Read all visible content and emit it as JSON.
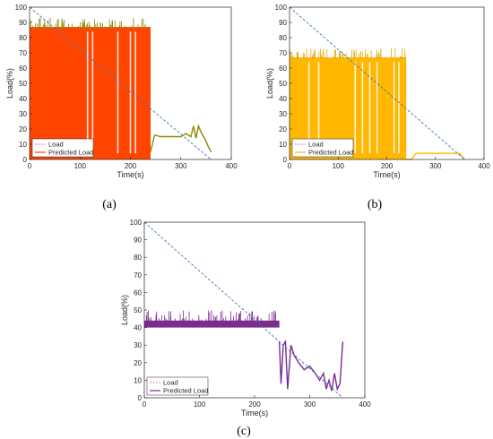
{
  "figure": {
    "colors": {
      "load": "#4472c4",
      "axis": "#262626",
      "legend_load_line": "#e0709a"
    },
    "panels": [
      {
        "id": "a",
        "caption": "(a)",
        "predicted_color": "#ff4500",
        "predicted_edge_color": "#8b8b00",
        "legend": [
          "Load",
          "Predicted Load"
        ],
        "legend_placement": "bottom-left",
        "chart_data": {
          "type": "line",
          "title": "",
          "xlabel": "Time(s)",
          "ylabel": "Load(%)",
          "xlim": [
            0,
            400
          ],
          "ylim": [
            0,
            100
          ],
          "xticks": [
            0,
            100,
            200,
            300,
            400
          ],
          "yticks": [
            0,
            10,
            20,
            30,
            40,
            50,
            60,
            70,
            80,
            90,
            100
          ],
          "series": [
            {
              "name": "Load",
              "style": "dashed",
              "x": [
                0,
                360
              ],
              "y": [
                100,
                0
              ]
            },
            {
              "name": "Predicted Load",
              "style": "solid",
              "band": {
                "x_start": 0,
                "x_end": 240,
                "y_low": 0,
                "y_high": 87
              },
              "x": [
                240,
                245,
                248,
                260,
                300,
                310,
                320,
                325,
                330,
                335,
                340,
                345,
                350,
                355,
                360
              ],
              "y": [
                5,
                12,
                16,
                15,
                15,
                17,
                15,
                22,
                14,
                22,
                18,
                15,
                12,
                8,
                5
              ]
            }
          ]
        }
      },
      {
        "id": "b",
        "caption": "(b)",
        "predicted_color": "#ffb700",
        "predicted_edge_color": "#e6a800",
        "legend": [
          "Load",
          "Predicted Load"
        ],
        "legend_placement": "bottom-left",
        "chart_data": {
          "type": "line",
          "title": "",
          "xlabel": "Time(s)",
          "ylabel": "Load(%)",
          "xlim": [
            0,
            400
          ],
          "ylim": [
            0,
            100
          ],
          "xticks": [
            0,
            100,
            200,
            300,
            400
          ],
          "yticks": [
            0,
            10,
            20,
            30,
            40,
            50,
            60,
            70,
            80,
            90,
            100
          ],
          "series": [
            {
              "name": "Load",
              "style": "dashed",
              "x": [
                0,
                360
              ],
              "y": [
                100,
                0
              ]
            },
            {
              "name": "Predicted Load",
              "style": "solid",
              "band": {
                "x_start": 0,
                "x_end": 240,
                "y_low": 0,
                "y_high": 67
              },
              "x": [
                240,
                250,
                260,
                300,
                340,
                350,
                355,
                360
              ],
              "y": [
                0,
                0,
                4,
                4,
                4,
                4,
                2,
                0
              ]
            }
          ]
        }
      },
      {
        "id": "c",
        "caption": "(c)",
        "predicted_color": "#7b2d8e",
        "predicted_edge_color": "#7b2d8e",
        "legend": [
          "Load",
          "Predicted Load"
        ],
        "legend_placement": "bottom-left",
        "chart_data": {
          "type": "line",
          "title": "",
          "xlabel": "Time(s)",
          "ylabel": "Load(%)",
          "xlim": [
            0,
            400
          ],
          "ylim": [
            0,
            100
          ],
          "xticks": [
            0,
            100,
            200,
            300,
            400
          ],
          "yticks": [
            0,
            10,
            20,
            30,
            40,
            50,
            60,
            70,
            80,
            90,
            100
          ],
          "series": [
            {
              "name": "Load",
              "style": "dashed",
              "x": [
                0,
                360
              ],
              "y": [
                100,
                0
              ]
            },
            {
              "name": "Predicted Load",
              "style": "solid",
              "band": {
                "x_start": 0,
                "x_end": 245,
                "y_low": 40,
                "y_high": 44
              },
              "x": [
                245,
                248,
                252,
                256,
                260,
                266,
                272,
                280,
                290,
                300,
                310,
                318,
                325,
                330,
                335,
                340,
                345,
                350,
                355,
                360
              ],
              "y": [
                32,
                8,
                30,
                32,
                5,
                30,
                24,
                20,
                16,
                18,
                14,
                10,
                14,
                5,
                10,
                4,
                14,
                5,
                8,
                32
              ]
            }
          ]
        }
      }
    ]
  }
}
